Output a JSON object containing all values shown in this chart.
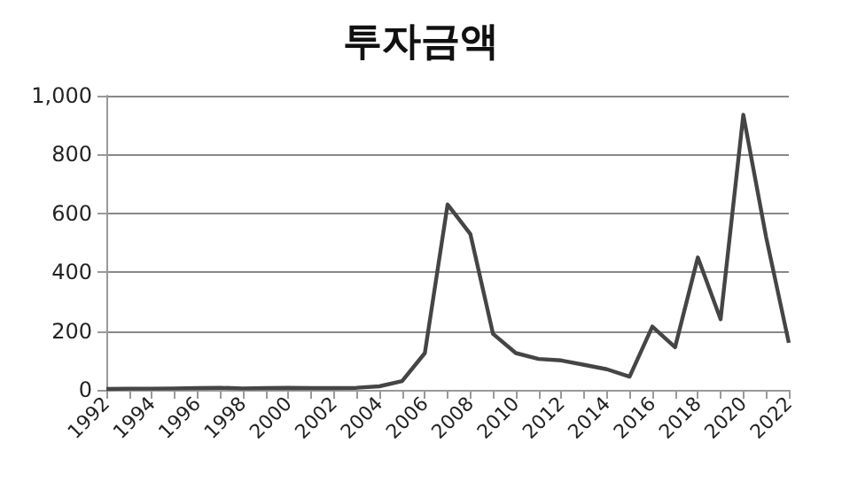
{
  "chart_data": {
    "type": "line",
    "title": "투자금액",
    "categories": [
      "1992",
      null,
      "1994",
      null,
      "1996",
      null,
      "1998",
      null,
      "2000",
      null,
      "2002",
      null,
      "2004",
      null,
      "2006",
      null,
      "2008",
      null,
      "2010",
      null,
      "2012",
      null,
      "2014",
      null,
      "2016",
      null,
      "2018",
      null,
      "2020",
      null,
      "2022"
    ],
    "series": [
      {
        "color": "#454545",
        "values": [
          3,
          4,
          4,
          5,
          6,
          7,
          5,
          6,
          7,
          6,
          6,
          7,
          12,
          30,
          125,
          630,
          530,
          190,
          125,
          105,
          100,
          85,
          70,
          45,
          215,
          145,
          450,
          240,
          935,
          520,
          160
        ]
      }
    ],
    "ylim": [
      0,
      1000
    ],
    "yticks": [
      0,
      200,
      400,
      600,
      800,
      {
        "value": 1000,
        "label": "1,000"
      }
    ],
    "grid": "y",
    "marker": "none",
    "line_style": "solid"
  }
}
